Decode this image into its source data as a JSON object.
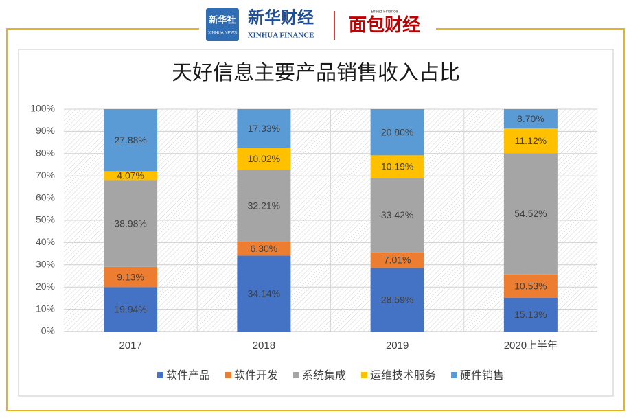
{
  "header": {
    "logo1": "新华社",
    "logo1_sub": "XINHUA NEWS",
    "logo2": "新华财经",
    "logo2_sub": "XINHUA FINANCE",
    "logo3": "面包财经",
    "logo3_sub": "Bread Finance"
  },
  "chart_data": {
    "type": "stacked_bar",
    "title": "天好信息主要产品销售收入占比",
    "categories": [
      "2017",
      "2018",
      "2019",
      "2020上半年"
    ],
    "series": [
      {
        "name": "软件产品",
        "color": "#4472c4",
        "values": [
          19.94,
          34.14,
          28.59,
          15.13
        ],
        "value_labels": [
          "19.94%",
          "34.14%",
          "28.59%",
          "15.13%"
        ]
      },
      {
        "name": "软件开发",
        "color": "#ed7d31",
        "values": [
          9.13,
          6.3,
          7.01,
          10.53
        ],
        "value_labels": [
          "9.13%",
          "6.30%",
          "7.01%",
          "10.53%"
        ]
      },
      {
        "name": "系统集成",
        "color": "#a5a5a5",
        "values": [
          38.98,
          32.21,
          33.42,
          54.52
        ],
        "value_labels": [
          "38.98%",
          "32.21%",
          "33.42%",
          "54.52%"
        ]
      },
      {
        "name": "运维技术服务",
        "color": "#ffc000",
        "values": [
          4.07,
          10.02,
          10.19,
          11.12
        ],
        "value_labels": [
          "4.07%",
          "10.02%",
          "10.19%",
          "11.12%"
        ]
      },
      {
        "name": "硬件销售",
        "color": "#5b9bd5",
        "values": [
          27.88,
          17.33,
          20.8,
          8.7
        ],
        "value_labels": [
          "27.88%",
          "17.33%",
          "20.80%",
          "8.70%"
        ]
      }
    ],
    "ylim": [
      0,
      100
    ],
    "yticks": [
      {
        "value": 0,
        "label": "0%"
      },
      {
        "value": 10,
        "label": "10%"
      },
      {
        "value": 20,
        "label": "20%"
      },
      {
        "value": 30,
        "label": "30%"
      },
      {
        "value": 40,
        "label": "40%"
      },
      {
        "value": 50,
        "label": "50%"
      },
      {
        "value": 60,
        "label": "60%"
      },
      {
        "value": 70,
        "label": "70%"
      },
      {
        "value": 80,
        "label": "80%"
      },
      {
        "value": 90,
        "label": "90%"
      },
      {
        "value": 100,
        "label": "100%"
      }
    ],
    "grid": true,
    "legend": "bottom"
  }
}
